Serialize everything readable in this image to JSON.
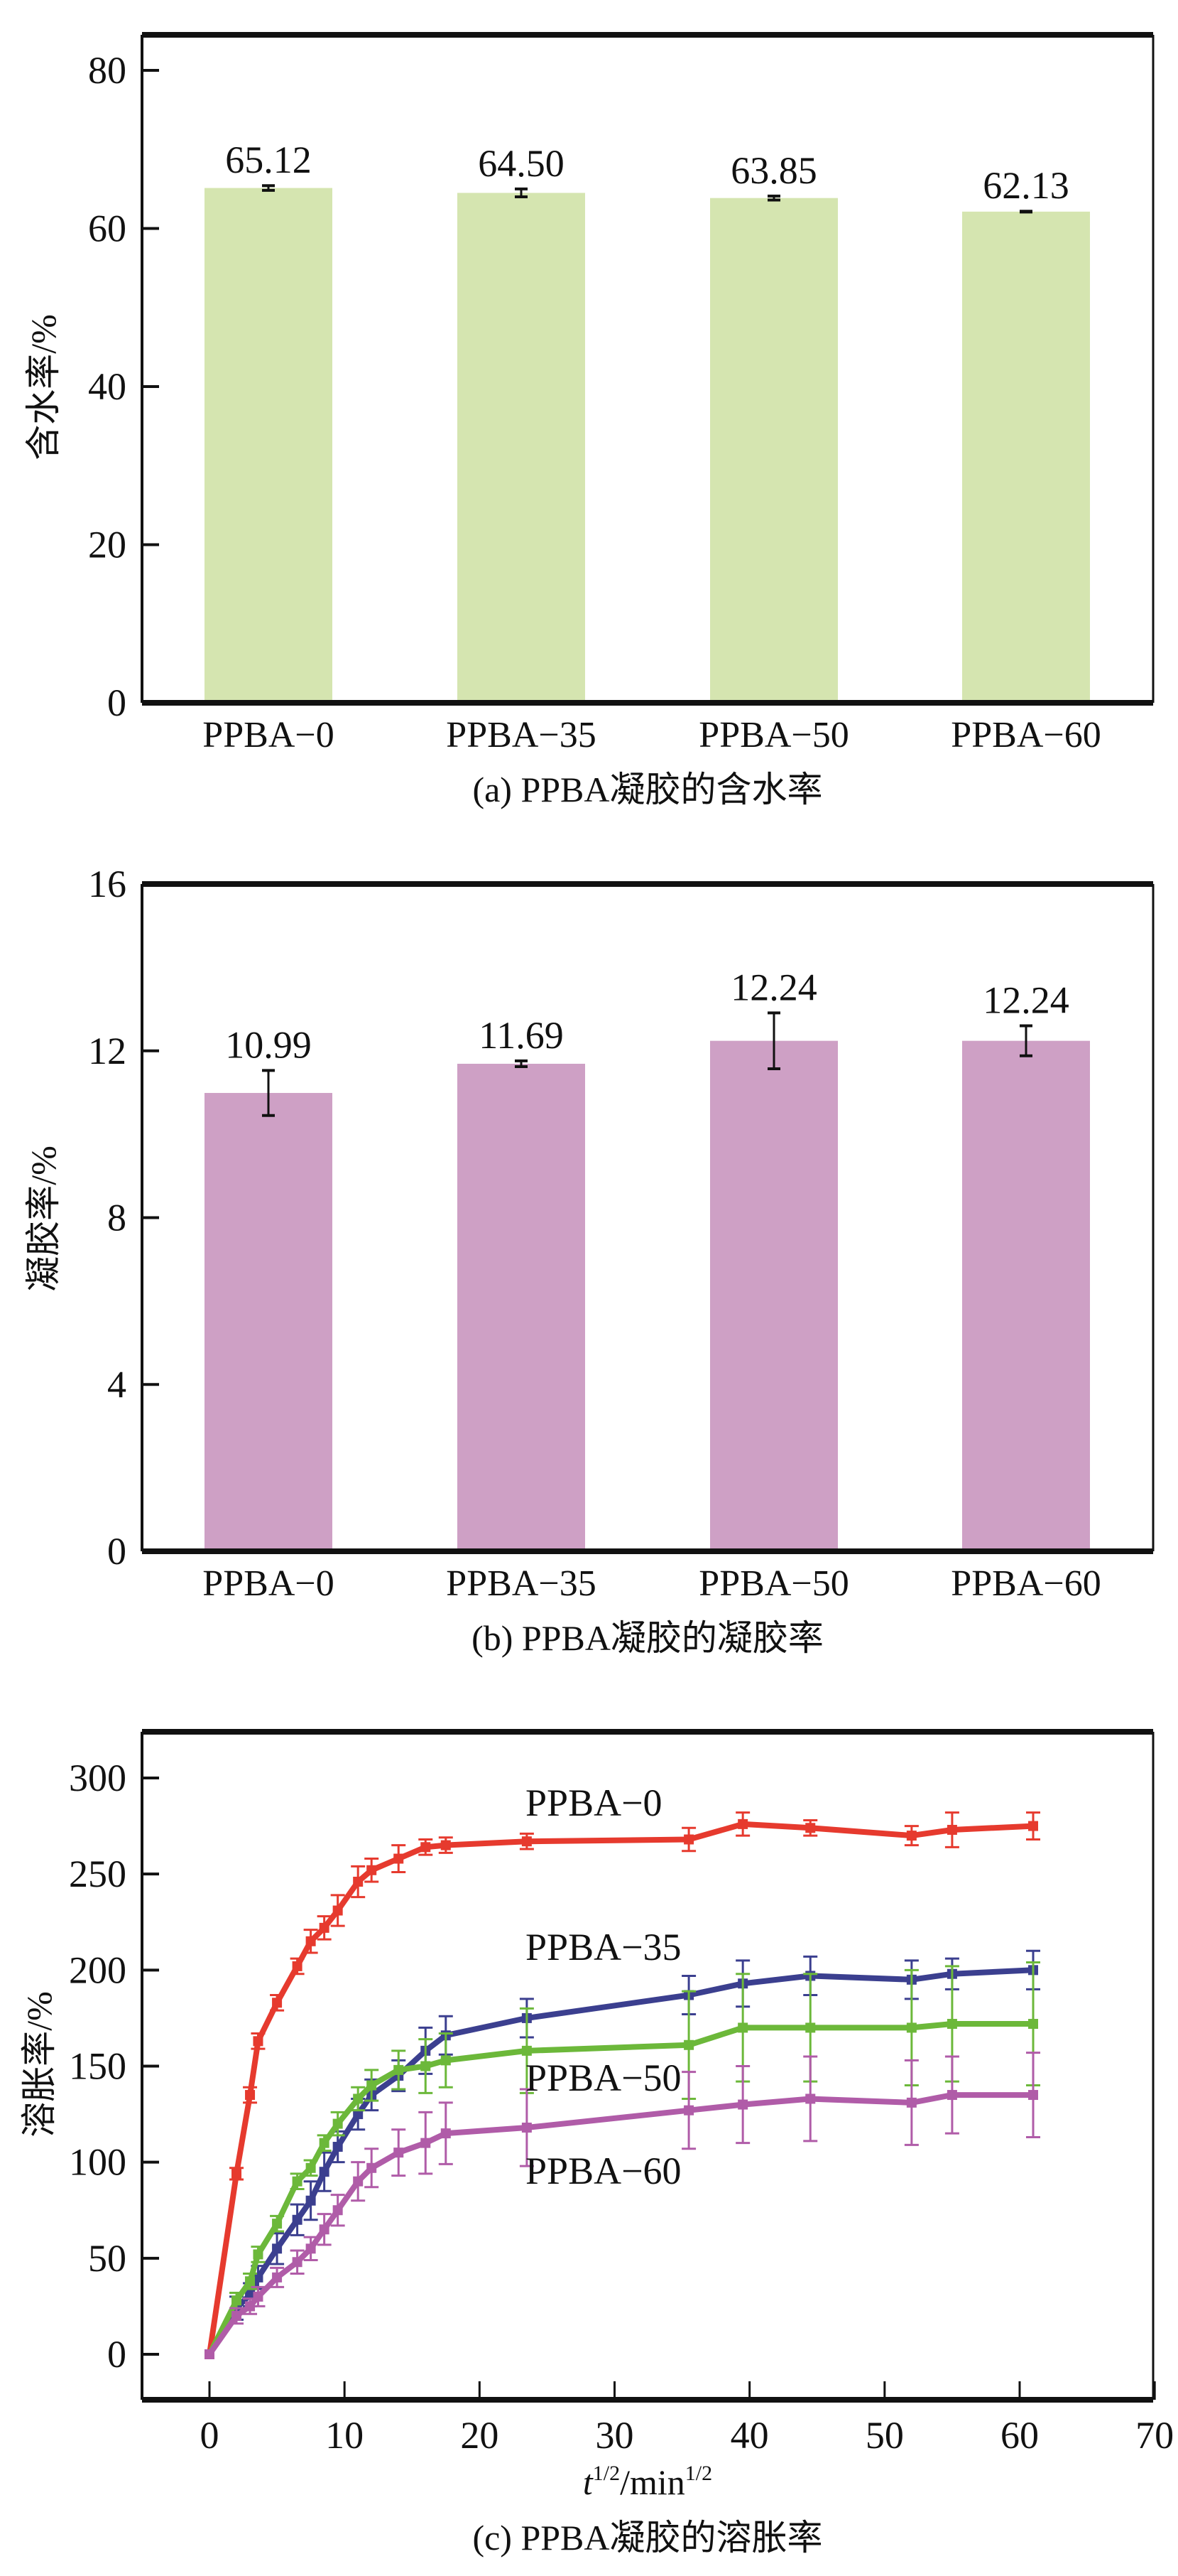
{
  "chart_data": [
    {
      "type": "bar",
      "id": "a",
      "caption": "(a) PPBA凝胶的含水率",
      "ylabel": "含水率/%",
      "xlabel": "",
      "categories": [
        "PPBA−0",
        "PPBA−35",
        "PPBA−50",
        "PPBA−60"
      ],
      "values": [
        65.12,
        64.5,
        63.85,
        62.13
      ],
      "value_labels": [
        "65.12",
        "64.50",
        "63.85",
        "62.13"
      ],
      "errors": [
        0.3,
        0.5,
        0.25,
        0.05
      ],
      "ylim": [
        0,
        85
      ],
      "yticks": [
        0,
        20,
        40,
        60,
        80
      ],
      "color": "#d5e5b0"
    },
    {
      "type": "bar",
      "id": "b",
      "caption": "(b) PPBA凝胶的凝胶率",
      "ylabel": "凝胶率/%",
      "xlabel": "",
      "categories": [
        "PPBA−0",
        "PPBA−35",
        "PPBA−50",
        "PPBA−60"
      ],
      "values": [
        10.99,
        11.69,
        12.24,
        12.24
      ],
      "value_labels": [
        "10.99",
        "11.69",
        "12.24",
        "12.24"
      ],
      "errors": [
        0.54,
        0.07,
        0.67,
        0.36
      ],
      "ylim": [
        0,
        16
      ],
      "yticks": [
        0,
        4,
        8,
        12,
        16
      ],
      "color": "#cea0c5"
    },
    {
      "type": "line",
      "id": "c",
      "caption": "(c) PPBA凝胶的溶胀率",
      "ylabel": "溶胀率/%",
      "xlabel_base": "t",
      "xlabel_sup1": "1/2",
      "xlabel_mid": "/min",
      "xlabel_sup2": "1/2",
      "xlim": [
        -5,
        70
      ],
      "ylim": [
        -23,
        325
      ],
      "xticks": [
        0,
        10,
        20,
        30,
        40,
        50,
        60,
        70
      ],
      "yticks": [
        0,
        50,
        100,
        150,
        200,
        250,
        300
      ],
      "x": [
        0,
        2,
        3,
        3.6,
        5,
        6.5,
        7.5,
        8.5,
        9.5,
        11,
        12,
        14,
        16,
        17.5,
        23.5,
        35.5,
        39.5,
        44.5,
        52,
        55,
        61
      ],
      "series": [
        {
          "name": "PPBA−0",
          "color": "#e63a2e",
          "values": [
            0,
            94,
            135,
            163,
            183,
            202,
            215,
            222,
            231,
            246,
            252,
            258,
            264,
            265,
            267,
            268,
            276,
            274,
            270,
            273,
            275
          ],
          "errors": [
            0,
            3,
            4,
            4,
            4,
            4,
            6,
            6,
            8,
            8,
            6,
            7,
            4,
            4,
            4,
            6,
            6,
            4,
            5,
            9,
            7
          ]
        },
        {
          "name": "PPBA−35",
          "color": "#3b3f8f",
          "values": [
            0,
            24,
            31,
            40,
            55,
            70,
            80,
            95,
            108,
            125,
            135,
            145,
            158,
            166,
            175,
            187,
            193,
            197,
            195,
            198,
            200
          ],
          "errors": [
            0,
            6,
            6,
            6,
            8,
            8,
            10,
            10,
            8,
            8,
            8,
            8,
            12,
            10,
            10,
            10,
            12,
            10,
            10,
            8,
            10
          ]
        },
        {
          "name": "PPBA−50",
          "color": "#6cb83a",
          "values": [
            0,
            28,
            38,
            52,
            68,
            90,
            97,
            110,
            120,
            133,
            140,
            148,
            150,
            153,
            158,
            161,
            170,
            170,
            170,
            172,
            172
          ],
          "errors": [
            0,
            4,
            4,
            4,
            4,
            4,
            4,
            4,
            6,
            6,
            8,
            10,
            14,
            14,
            22,
            28,
            28,
            28,
            30,
            30,
            32
          ]
        },
        {
          "name": "PPBA−60",
          "color": "#b05ca8",
          "values": [
            0,
            20,
            25,
            30,
            40,
            48,
            55,
            65,
            75,
            90,
            97,
            105,
            110,
            115,
            118,
            127,
            130,
            133,
            131,
            135,
            135
          ],
          "errors": [
            0,
            4,
            4,
            5,
            5,
            6,
            6,
            8,
            8,
            10,
            10,
            12,
            16,
            16,
            20,
            20,
            20,
            22,
            22,
            20,
            22
          ]
        }
      ],
      "annotations": [
        "PPBA−0",
        "PPBA−35",
        "PPBA−50",
        "PPBA−60"
      ]
    }
  ]
}
